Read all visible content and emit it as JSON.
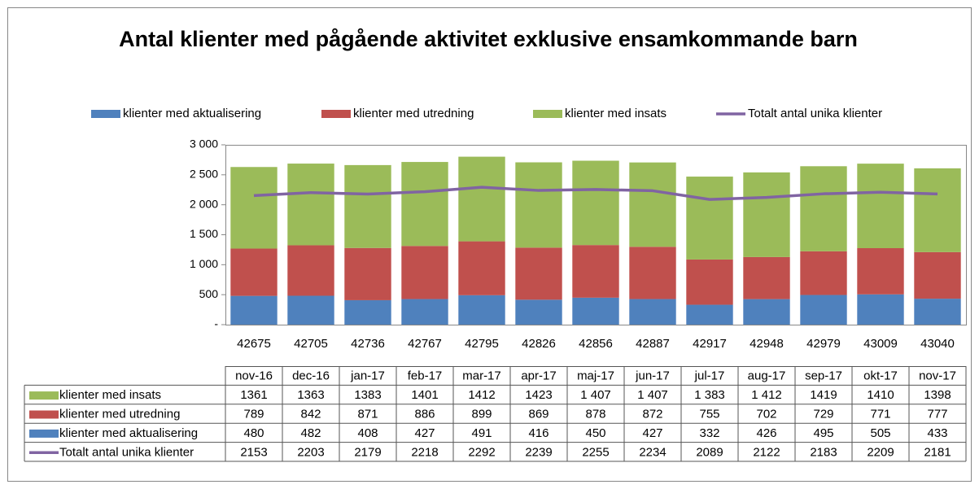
{
  "chart_data": {
    "type": "bar",
    "stacked": true,
    "title": "Antal klienter med pågående aktivitet exklusive ensamkommande barn",
    "categories": [
      "42675",
      "42705",
      "42736",
      "42767",
      "42795",
      "42826",
      "42856",
      "42887",
      "42917",
      "42948",
      "42979",
      "43009",
      "43040"
    ],
    "table_categories": [
      "nov-16",
      "dec-16",
      "jan-17",
      "feb-17",
      "mar-17",
      "apr-17",
      "maj-17",
      "jun-17",
      "jul-17",
      "aug-17",
      "sep-17",
      "okt-17",
      "nov-17"
    ],
    "series": [
      {
        "name": "klienter med aktualisering",
        "type": "bar",
        "color": "#4f81bd",
        "values": [
          480,
          482,
          408,
          427,
          491,
          416,
          450,
          427,
          332,
          426,
          495,
          505,
          433
        ]
      },
      {
        "name": "klienter med utredning",
        "type": "bar",
        "color": "#c0504d",
        "values": [
          789,
          842,
          871,
          886,
          899,
          869,
          878,
          872,
          755,
          702,
          729,
          771,
          777
        ]
      },
      {
        "name": "klienter med insats",
        "type": "bar",
        "color": "#9bbb59",
        "values": [
          1361,
          1363,
          1383,
          1401,
          1412,
          1423,
          1407,
          1407,
          1383,
          1412,
          1419,
          1410,
          1398
        ],
        "value_labels": [
          "1361",
          "1363",
          "1383",
          "1401",
          "1412",
          "1423",
          "1 407",
          "1 407",
          "1 383",
          "1 412",
          "1419",
          "1410",
          "1398"
        ]
      },
      {
        "name": "Totalt antal unika klienter",
        "type": "line",
        "color": "#8064a2",
        "values": [
          2153,
          2203,
          2179,
          2218,
          2292,
          2239,
          2255,
          2234,
          2089,
          2122,
          2183,
          2209,
          2181
        ]
      }
    ],
    "ylim": [
      0,
      3000
    ],
    "yticks": [
      {
        "value": 0,
        "label": "-"
      },
      500,
      {
        "value": 1000,
        "label": "1 000"
      },
      {
        "value": 1500,
        "label": "1 500"
      },
      {
        "value": 2000,
        "label": "2 000"
      },
      {
        "value": 2500,
        "label": "2 500"
      },
      {
        "value": 3000,
        "label": "3 000"
      }
    ],
    "legend": "top",
    "grid": false
  }
}
